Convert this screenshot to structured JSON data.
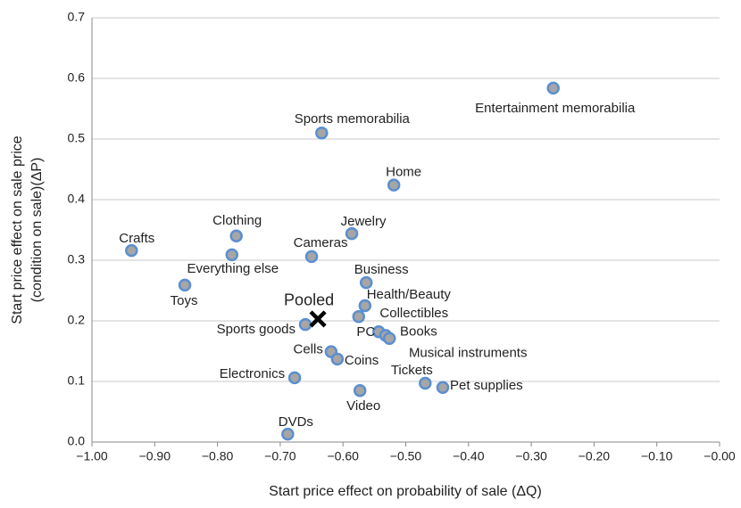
{
  "chart_data": {
    "type": "scatter",
    "xlabel": "Start price effect on probability of sale (ΔQ)",
    "ylabel": [
      "Start price effect on sale price",
      "(condition on sale)(ΔP)"
    ],
    "labels": [
      "Entertainment memorabilia",
      "Sports memorabilia",
      "Home",
      "Jewelry",
      "Clothing",
      "Crafts",
      "Everything else",
      "Cameras",
      "Business",
      "Toys",
      "Health/Beauty",
      "Collectibles",
      "Sports goods",
      "PC",
      "Books",
      "Musical instruments",
      "Cells",
      "Coins",
      "Electronics",
      "Tickets",
      "Pet supplies",
      "Video",
      "DVDs"
    ],
    "x": [
      -0.265,
      -0.634,
      -0.519,
      -0.586,
      -0.77,
      -0.937,
      -0.777,
      -0.65,
      -0.563,
      -0.852,
      -0.565,
      -0.575,
      -0.66,
      -0.543,
      -0.532,
      -0.526,
      -0.619,
      -0.609,
      -0.677,
      -0.469,
      -0.441,
      -0.573,
      -0.688
    ],
    "values": [
      0.584,
      0.51,
      0.424,
      0.344,
      0.34,
      0.316,
      0.309,
      0.306,
      0.263,
      0.259,
      0.225,
      0.207,
      0.194,
      0.182,
      0.176,
      0.171,
      0.149,
      0.137,
      0.106,
      0.097,
      0.09,
      0.085,
      0.013
    ],
    "color": "#a6a6a6",
    "edge_color": "#5b8fd0",
    "pooled": {
      "name": "Pooled",
      "x": -0.64,
      "y": 0.203,
      "color": "#000000"
    },
    "xlim": [
      -1,
      0
    ],
    "ylim": [
      0,
      0.7
    ],
    "xticks": [
      {
        "value": -1,
        "label": "−1.00"
      },
      {
        "value": -0.9,
        "label": "−0.90"
      },
      {
        "value": -0.8,
        "label": "−0.80"
      },
      {
        "value": -0.7,
        "label": "−0.70"
      },
      {
        "value": -0.6,
        "label": "−0.60"
      },
      {
        "value": -0.5,
        "label": "−0.50"
      },
      {
        "value": -0.4,
        "label": "−0.40"
      },
      {
        "value": -0.3,
        "label": "−0.30"
      },
      {
        "value": -0.2,
        "label": "−0.20"
      },
      {
        "value": -0.1,
        "label": "−0.10"
      },
      {
        "value": 0,
        "label": "−0.00"
      }
    ],
    "yticks": [
      {
        "value": 0,
        "label": "0.0"
      },
      0.1,
      0.2,
      0.3,
      0.4,
      0.5,
      0.6,
      0.7
    ],
    "grid": true
  }
}
